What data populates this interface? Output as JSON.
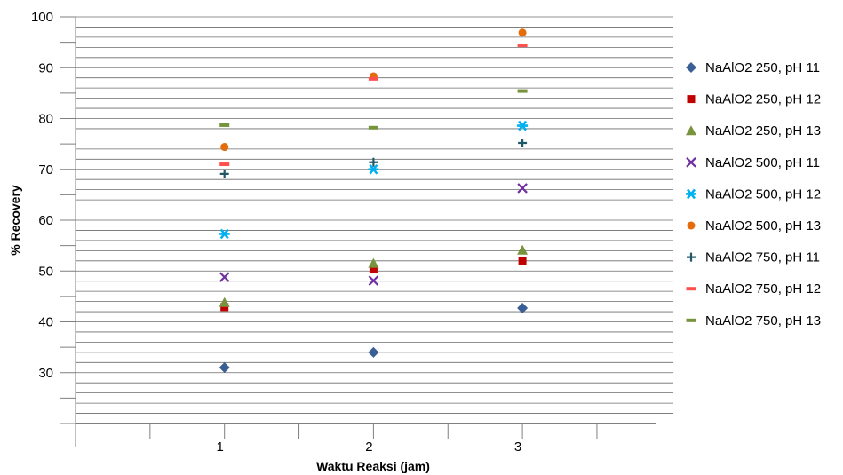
{
  "chart_data": {
    "type": "scatter",
    "xlabel": "Waktu Reaksi (jam)",
    "ylabel": "% Recovery",
    "x": [
      1,
      2,
      3
    ],
    "xlim": [
      0,
      4
    ],
    "ylim": [
      20,
      100
    ],
    "y_ticks": [
      30,
      40,
      50,
      60,
      70,
      80,
      90,
      100
    ],
    "x_ticks": [
      1,
      2,
      3
    ],
    "grid": "horizontal",
    "legend_position": "right",
    "series": [
      {
        "name": "NaAlO2 250, pH 11",
        "marker": "diamond",
        "color": "#3A5F94",
        "values": [
          31.0,
          34.0,
          42.7
        ]
      },
      {
        "name": "NaAlO2 250, pH 12",
        "marker": "square",
        "color": "#C00000",
        "values": [
          42.9,
          50.3,
          51.9
        ]
      },
      {
        "name": "NaAlO2 250, pH 13",
        "marker": "triangle",
        "color": "#77933C",
        "values": [
          43.8,
          51.5,
          54.1
        ]
      },
      {
        "name": "NaAlO2 500, pH 11",
        "marker": "x",
        "color": "#7030A0",
        "values": [
          48.8,
          48.1,
          66.3
        ]
      },
      {
        "name": "NaAlO2 500, pH 12",
        "marker": "star",
        "color": "#00B0F0",
        "values": [
          57.3,
          70.0,
          78.6
        ]
      },
      {
        "name": "NaAlO2 500, pH 13",
        "marker": "circle",
        "color": "#E46C0A",
        "values": [
          74.4,
          88.3,
          96.9
        ]
      },
      {
        "name": "NaAlO2 750, pH 11",
        "marker": "plus",
        "color": "#215868",
        "values": [
          69.1,
          71.4,
          75.2
        ]
      },
      {
        "name": "NaAlO2 750, pH 12",
        "marker": "dash",
        "color": "#FF5050",
        "values": [
          71.0,
          87.8,
          94.4
        ]
      },
      {
        "name": "NaAlO2 750, pH 13",
        "marker": "dash",
        "color": "#77933C",
        "values": [
          78.7,
          78.2,
          85.4
        ]
      }
    ]
  }
}
